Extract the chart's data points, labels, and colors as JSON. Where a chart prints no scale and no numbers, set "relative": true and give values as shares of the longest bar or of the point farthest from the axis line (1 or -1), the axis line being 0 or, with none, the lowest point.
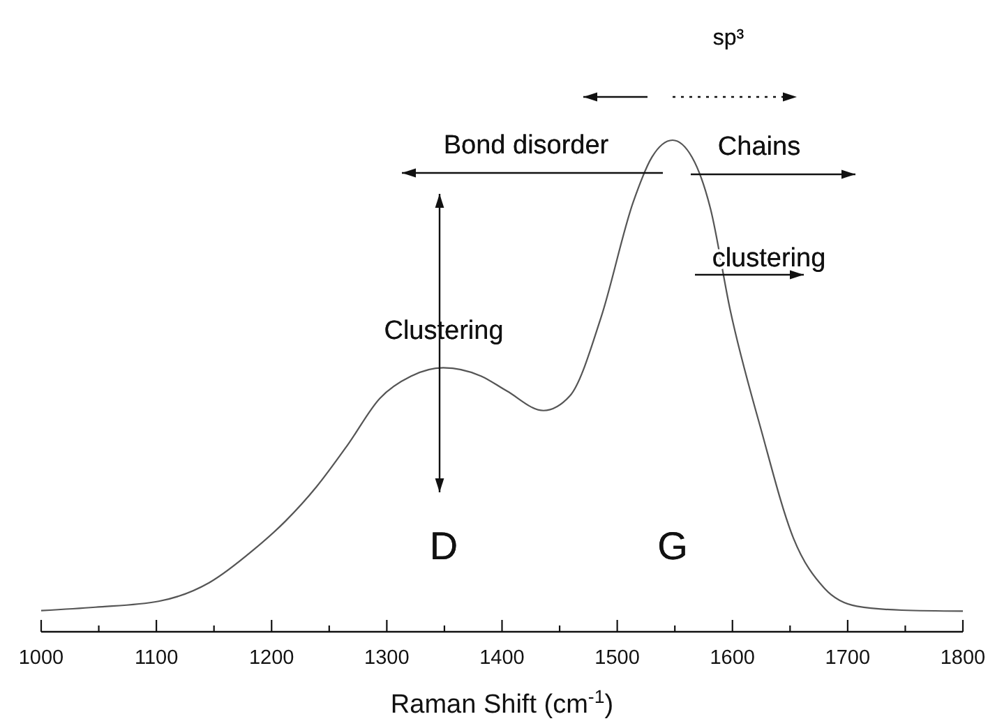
{
  "chart_data": {
    "type": "line",
    "relative": true,
    "xlabel": "Raman Shift (cm$^{-1}$)",
    "x": [
      1000,
      1047,
      1102,
      1146,
      1184,
      1212,
      1239,
      1266,
      1294,
      1321,
      1349,
      1382,
      1404,
      1436,
      1459,
      1486,
      1514,
      1530,
      1548,
      1565,
      1581,
      1598,
      1625,
      1653,
      1680,
      1708,
      1747,
      1800
    ],
    "values": [
      0.043,
      0.05,
      0.062,
      0.1,
      0.166,
      0.225,
      0.295,
      0.38,
      0.475,
      0.52,
      0.537,
      0.52,
      0.49,
      0.45,
      0.48,
      0.64,
      0.875,
      0.965,
      1.0,
      0.965,
      0.86,
      0.655,
      0.41,
      0.19,
      0.088,
      0.052,
      0.044,
      0.042
    ],
    "color": "#555555",
    "line_style": "solid",
    "xlim": [
      1000,
      1800
    ],
    "xticks": [
      1000,
      {
        "value": 1050,
        "label": null
      },
      1100,
      {
        "value": 1150,
        "label": null
      },
      1200,
      {
        "value": 1250,
        "label": null
      },
      1300,
      {
        "value": 1350,
        "label": null
      },
      1400,
      {
        "value": 1450,
        "label": null
      },
      1500,
      {
        "value": 1550,
        "label": null
      },
      1600,
      {
        "value": 1650,
        "label": null
      },
      1700,
      {
        "value": 1750,
        "label": null
      },
      1800
    ],
    "annotations": [
      "sp³",
      "Bond disorder",
      "Chains",
      "clustering",
      "Clustering",
      "D",
      "G"
    ]
  }
}
